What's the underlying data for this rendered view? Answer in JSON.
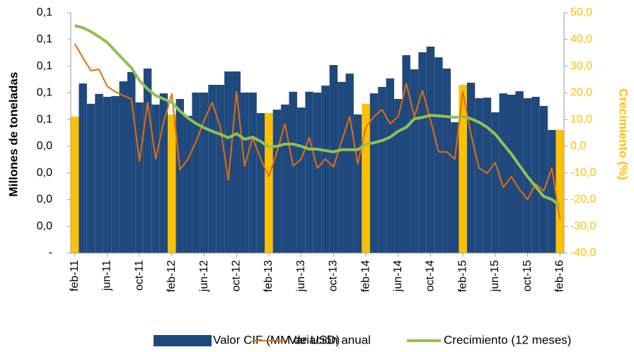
{
  "chart_data": {
    "type": "combo",
    "y_label": "Millones de toneladas",
    "y2_label": "Crecimiento (%)",
    "y2_color": "#ffc000",
    "axis_color": "#9c9c9c",
    "grid": false,
    "categories": [
      "feb-11",
      null,
      null,
      null,
      "jun-11",
      null,
      null,
      null,
      "oct-11",
      null,
      null,
      null,
      "feb-12",
      null,
      null,
      null,
      "jun-12",
      null,
      null,
      null,
      "oct-12",
      null,
      null,
      null,
      "feb-13",
      null,
      null,
      null,
      "jun-13",
      null,
      null,
      null,
      "oct-13",
      null,
      null,
      null,
      "feb-14",
      null,
      null,
      null,
      "jun-14",
      null,
      null,
      null,
      "oct-14",
      null,
      null,
      null,
      "feb-15",
      null,
      null,
      null,
      "jun-15",
      null,
      null,
      null,
      "oct-15",
      null,
      null,
      null,
      "feb-16"
    ],
    "ylim": [
      0,
      0.09
    ],
    "yticks": [
      {
        "value": 0,
        "label": "-"
      },
      {
        "value": 0.01,
        "label": "0,0"
      },
      {
        "value": 0.02,
        "label": "0,0"
      },
      {
        "value": 0.03,
        "label": "0,0"
      },
      {
        "value": 0.04,
        "label": "0,0"
      },
      {
        "value": 0.05,
        "label": "0,1"
      },
      {
        "value": 0.06,
        "label": "0,1"
      },
      {
        "value": 0.07,
        "label": "0,1"
      },
      {
        "value": 0.08,
        "label": "0,1"
      },
      {
        "value": 0.09,
        "label": "0,1"
      }
    ],
    "y2lim": [
      -40,
      50
    ],
    "y2ticks": [
      {
        "value": -40,
        "label": "-40,0"
      },
      {
        "value": -30,
        "label": "-30,0"
      },
      {
        "value": -20,
        "label": "-20,0"
      },
      {
        "value": -10,
        "label": "-10,0"
      },
      {
        "value": 0,
        "label": "0,0"
      },
      {
        "value": 10,
        "label": "10,0"
      },
      {
        "value": 20,
        "label": "20,0"
      },
      {
        "value": 30,
        "label": "30,0"
      },
      {
        "value": 40,
        "label": "40,0"
      },
      {
        "value": 50,
        "label": "50,0"
      }
    ],
    "series": [
      {
        "name": "Valor CIF (MM de USD)",
        "type": "bar",
        "axis": "y",
        "color": "#1f497d",
        "colors": [
          "#ffc000",
          "#1f497d",
          "#1f497d",
          "#1f497d",
          "#1f497d",
          "#1f497d",
          "#1f497d",
          "#1f497d",
          "#1f497d",
          "#1f497d",
          "#1f497d",
          "#1f497d",
          "#ffc000",
          "#1f497d",
          "#1f497d",
          "#1f497d",
          "#1f497d",
          "#1f497d",
          "#1f497d",
          "#1f497d",
          "#1f497d",
          "#1f497d",
          "#1f497d",
          "#1f497d",
          "#ffc000",
          "#1f497d",
          "#1f497d",
          "#1f497d",
          "#1f497d",
          "#1f497d",
          "#1f497d",
          "#1f497d",
          "#1f497d",
          "#1f497d",
          "#1f497d",
          "#1f497d",
          "#ffc000",
          "#1f497d",
          "#1f497d",
          "#1f497d",
          "#1f497d",
          "#1f497d",
          "#1f497d",
          "#1f497d",
          "#1f497d",
          "#1f497d",
          "#1f497d",
          "#1f497d",
          "#ffc000",
          "#1f497d",
          "#1f497d",
          "#1f497d",
          "#1f497d",
          "#1f497d",
          "#1f497d",
          "#1f497d",
          "#1f497d",
          "#1f497d",
          "#1f497d",
          "#1f497d",
          "#ffc000"
        ],
        "values": [
          0.0511,
          0.0635,
          0.0559,
          0.0596,
          0.0585,
          0.0588,
          0.0643,
          0.0678,
          0.0564,
          0.0691,
          0.0556,
          0.0598,
          0.0519,
          0.0577,
          0.0514,
          0.0601,
          0.0601,
          0.063,
          0.063,
          0.068,
          0.068,
          0.0601,
          0.0601,
          0.0524,
          0.0524,
          0.0537,
          0.0556,
          0.0604,
          0.0545,
          0.0604,
          0.0601,
          0.0627,
          0.0704,
          0.0641,
          0.0672,
          0.0519,
          0.0559,
          0.0598,
          0.0622,
          0.0654,
          0.0577,
          0.0741,
          0.0688,
          0.0752,
          0.0773,
          0.0733,
          0.0691,
          0.049,
          0.063,
          0.0638,
          0.058,
          0.0582,
          0.0527,
          0.0598,
          0.0593,
          0.0606,
          0.058,
          0.0585,
          0.0551,
          0.0461,
          0.0461
        ]
      },
      {
        "name": "Variación anual",
        "type": "line",
        "axis": "y2",
        "color": "#e46c0a",
        "width": 2,
        "values": [
          38.4,
          33.1,
          28.3,
          28.8,
          22.5,
          20.4,
          19.0,
          17.7,
          -5.6,
          16.4,
          -4.8,
          9.2,
          19.6,
          -8.8,
          -4.8,
          1.8,
          9.8,
          16.4,
          7.1,
          -12.7,
          20.4,
          -7.4,
          3.2,
          -4.8,
          -11.4,
          -2.1,
          8.4,
          -7.4,
          -4.8,
          3.2,
          -8.2,
          -4.8,
          -7.7,
          1.8,
          11.1,
          -6.6,
          7.1,
          11.1,
          13.7,
          8.4,
          11.1,
          23.5,
          11.1,
          20.9,
          9.8,
          -2.1,
          -2.1,
          -4.8,
          20.4,
          4.5,
          -8.2,
          -10.1,
          -6.1,
          -15.4,
          -11.4,
          -16.2,
          -19.9,
          -14.1,
          -16.7,
          -8.2,
          -27.3
        ]
      },
      {
        "name": "Crecimiento (12 meses)",
        "type": "line",
        "axis": "y2",
        "color": "#92c050",
        "width": 4,
        "values": [
          45.2,
          44.4,
          42.9,
          41.0,
          38.9,
          35.7,
          32.5,
          29.4,
          24.6,
          21.4,
          19.0,
          17.7,
          16.4,
          13.2,
          10.6,
          8.5,
          6.9,
          5.6,
          4.5,
          3.2,
          4.7,
          2.6,
          3.4,
          1.8,
          -0.3,
          0.0,
          0.8,
          0.8,
          0.0,
          -1.1,
          -1.1,
          -1.6,
          -2.1,
          -1.3,
          -1.3,
          -1.3,
          0.8,
          1.3,
          2.1,
          3.4,
          5.6,
          7.1,
          10.3,
          10.8,
          11.6,
          11.4,
          11.1,
          10.8,
          11.1,
          10.3,
          9.0,
          7.1,
          4.5,
          0.8,
          -2.9,
          -7.2,
          -11.4,
          -15.1,
          -18.8,
          -19.9,
          -22.3
        ]
      }
    ]
  }
}
